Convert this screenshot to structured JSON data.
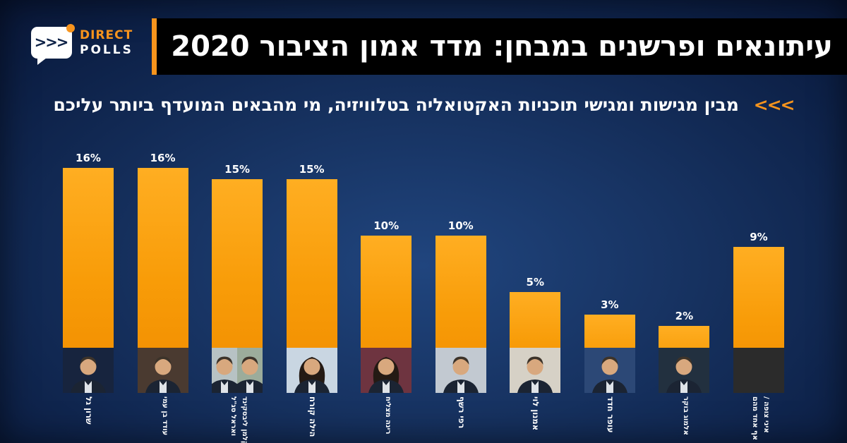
{
  "logo": {
    "arrows": ">>>",
    "brand_top": "DIRECT",
    "brand_bottom": "POLLS"
  },
  "header": {
    "title": "עיתונאים ופרשנים במבחן: מדד אמון הציבור 2020",
    "subtitle": "מבין מגישות ומגישי תוכניות האקטואליה בטלוויזיה, מי מהבאים המועדף ביותר עליכם",
    "chevrons": "<<<"
  },
  "colors": {
    "accent_orange": "#F7941D",
    "banner_black": "#000000",
    "background_navy_center": "#20457E",
    "background_navy_edge": "#060F2B",
    "bar_orange_top": "#FFAE22",
    "bar_orange_bottom": "#F08C00",
    "text_white": "#FFFFFF",
    "none_block_gray": "#2B2B2B"
  },
  "chart_data": {
    "type": "bar",
    "orientation": "vertical-columns",
    "display_order": "left-to-right as shown",
    "value_unit": "%",
    "ylim": [
      0,
      16
    ],
    "title": "עיתונאים ופרשנים במבחן: מדד אמון הציבור 2020",
    "xlabel": "",
    "ylabel": "",
    "legend": "none",
    "grid": false,
    "categories": [
      "שרון גל",
      "עודד בן עמי",
      "קלמן ליבסקינד ואראל סג\"ל",
      "הילה קורח",
      "רינה מצליח",
      "רפי רשף",
      "אמנון לוי",
      "עופר חדד",
      "אלמוג בוקר",
      "איני צופה / אף אחד מהם"
    ],
    "values": [
      16,
      16,
      15,
      15,
      10,
      10,
      5,
      3,
      2,
      9
    ],
    "bars": [
      {
        "label": "16%",
        "value": 16,
        "name_lines": [
          "שרון גל"
        ],
        "photo": {
          "type": "person",
          "bg": "#17243E"
        }
      },
      {
        "label": "16%",
        "value": 16,
        "name_lines": [
          "עודד בן עמי"
        ],
        "photo": {
          "type": "person",
          "bg": "#4A3A30"
        }
      },
      {
        "label": "15%",
        "value": 15,
        "name_lines": [
          "קלמן ליבסקינד",
          "ואראל סג\"ל"
        ],
        "photo": {
          "type": "two-people",
          "bg": "#B7C2C4",
          "bg2": "#9CAC9B"
        }
      },
      {
        "label": "15%",
        "value": 15,
        "name_lines": [
          "הילה קורח"
        ],
        "photo": {
          "type": "person",
          "bg": "#C9D6E2",
          "hair": "long"
        }
      },
      {
        "label": "10%",
        "value": 10,
        "name_lines": [
          "רינה מצליח"
        ],
        "photo": {
          "type": "person",
          "bg": "#6E3440",
          "hair": "long"
        }
      },
      {
        "label": "10%",
        "value": 10,
        "name_lines": [
          "רפי רשף"
        ],
        "photo": {
          "type": "person",
          "bg": "#C2C9D1"
        }
      },
      {
        "label": "5%",
        "value": 5,
        "name_lines": [
          "אמנון לוי"
        ],
        "photo": {
          "type": "person",
          "bg": "#D6D1C6"
        }
      },
      {
        "label": "3%",
        "value": 3,
        "name_lines": [
          "עופר חדד"
        ],
        "photo": {
          "type": "person",
          "bg": "#2C4876"
        }
      },
      {
        "label": "2%",
        "value": 2,
        "name_lines": [
          "אלמוג בוקר"
        ],
        "photo": {
          "type": "person",
          "bg": "#22303F"
        }
      },
      {
        "label": "9%",
        "value": 9,
        "name_lines": [
          "איני צופה /",
          "אף אחד מהם"
        ],
        "photo": {
          "type": "none",
          "bg": "#2B2B2B"
        }
      }
    ]
  }
}
